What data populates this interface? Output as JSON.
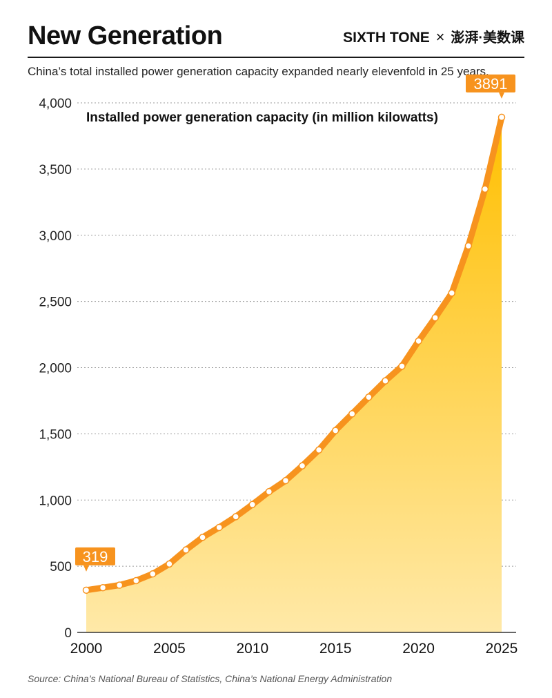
{
  "header": {
    "title": "New Generation",
    "brand_left": "SIXTH TONE",
    "brand_sep": "×",
    "brand_right": "澎湃·美数课",
    "subtitle": "China’s total installed power generation capacity expanded nearly elevenfold in 25 years."
  },
  "footer": {
    "source": "Source: China’s National Bureau of Statistics, China’s National Energy Administration"
  },
  "colors": {
    "line": "#F7931E",
    "area_top": "#FFBF00",
    "area_bottom": "#FFE9A8",
    "label_bg": "#F7931E"
  },
  "chart_data": {
    "type": "area",
    "title": "Installed power generation capacity (in million kilowatts)",
    "xlabel": "",
    "ylabel": "",
    "xlim": [
      2000,
      2025
    ],
    "ylim": [
      0,
      4000
    ],
    "x_ticks": [
      2000,
      2005,
      2010,
      2015,
      2020,
      2025
    ],
    "y_ticks": [
      0,
      500,
      1000,
      1500,
      2000,
      2500,
      3000,
      3500,
      4000
    ],
    "y_tick_labels": [
      "0",
      "500",
      "1,000",
      "1,500",
      "2,000",
      "2,500",
      "3,000",
      "3,500",
      "4,000"
    ],
    "grid": "horizontal dotted",
    "x": [
      2000,
      2001,
      2002,
      2003,
      2004,
      2005,
      2006,
      2007,
      2008,
      2009,
      2010,
      2011,
      2012,
      2013,
      2014,
      2015,
      2016,
      2017,
      2018,
      2019,
      2020,
      2021,
      2022,
      2023,
      2024,
      2025
    ],
    "values": [
      319,
      338,
      357,
      391,
      442,
      517,
      623,
      718,
      793,
      874,
      966,
      1063,
      1147,
      1258,
      1378,
      1525,
      1651,
      1777,
      1900,
      2011,
      2201,
      2377,
      2564,
      2920,
      3349,
      3891
    ],
    "annotations": [
      {
        "x": 2000,
        "text": "319"
      },
      {
        "x": 2025,
        "text": "3891"
      }
    ]
  }
}
